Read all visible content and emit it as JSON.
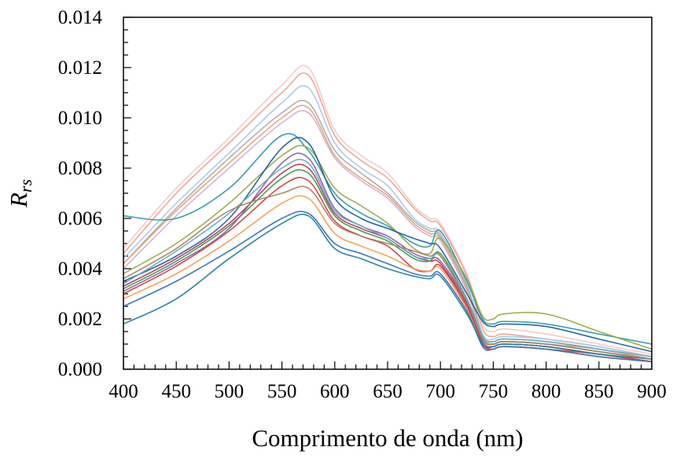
{
  "chart_data": {
    "type": "line",
    "xlabel": "Comprimento de onda (nm)",
    "ylabel": "R",
    "ylabel_subscript": "rs",
    "xlim": [
      400,
      900
    ],
    "ylim": [
      0,
      0.014
    ],
    "x_ticks": [
      "400",
      "450",
      "500",
      "550",
      "600",
      "650",
      "700",
      "750",
      "800",
      "850",
      "900"
    ],
    "y_ticks": [
      "0.000",
      "0.002",
      "0.004",
      "0.006",
      "0.008",
      "0.010",
      "0.012",
      "0.014"
    ],
    "grid": false,
    "legend": "none",
    "x": [
      400,
      450,
      500,
      550,
      575,
      600,
      625,
      650,
      675,
      690,
      700,
      725,
      740,
      750,
      760,
      800,
      850,
      900
    ],
    "series": [
      {
        "color": "#f4c7c3",
        "values": [
          0.0048,
          0.0072,
          0.0092,
          0.0113,
          0.012,
          0.0095,
          0.0085,
          0.0078,
          0.0065,
          0.006,
          0.0058,
          0.0038,
          0.0018,
          0.0015,
          0.0016,
          0.0014,
          0.001,
          0.0006
        ]
      },
      {
        "color": "#f0a090",
        "values": [
          0.0046,
          0.007,
          0.009,
          0.011,
          0.0117,
          0.0093,
          0.0083,
          0.0076,
          0.0064,
          0.0059,
          0.0057,
          0.0037,
          0.0016,
          0.0013,
          0.0014,
          0.0012,
          0.0009,
          0.0005
        ]
      },
      {
        "color": "#a8c8e8",
        "values": [
          0.0044,
          0.0066,
          0.0086,
          0.0106,
          0.0112,
          0.009,
          0.008,
          0.0073,
          0.006,
          0.0056,
          0.0054,
          0.0034,
          0.0014,
          0.0012,
          0.0013,
          0.0012,
          0.0009,
          0.0005
        ]
      },
      {
        "color": "#aaaaaa",
        "values": [
          0.0042,
          0.0064,
          0.0084,
          0.0102,
          0.0106,
          0.0087,
          0.0078,
          0.007,
          0.0059,
          0.0055,
          0.0053,
          0.0033,
          0.0013,
          0.0011,
          0.0012,
          0.0011,
          0.0008,
          0.0004
        ]
      },
      {
        "color": "#e8a070",
        "values": [
          0.0042,
          0.0063,
          0.0082,
          0.01,
          0.0104,
          0.0085,
          0.0076,
          0.0069,
          0.0058,
          0.0054,
          0.0052,
          0.0032,
          0.0012,
          0.001,
          0.0011,
          0.001,
          0.0008,
          0.0004
        ]
      },
      {
        "color": "#d0b0d8",
        "values": [
          0.004,
          0.0061,
          0.008,
          0.0098,
          0.0102,
          0.0084,
          0.0075,
          0.0068,
          0.0057,
          0.0053,
          0.0051,
          0.0031,
          0.0012,
          0.001,
          0.0011,
          0.001,
          0.0007,
          0.0004
        ]
      },
      {
        "color": "#2a9ab0",
        "values": [
          0.0061,
          0.006,
          0.0072,
          0.0093,
          0.0087,
          0.007,
          0.0062,
          0.0057,
          0.005,
          0.0049,
          0.0055,
          0.0035,
          0.002,
          0.0018,
          0.0019,
          0.0018,
          0.0014,
          0.001
        ]
      },
      {
        "color": "#9aaa40",
        "values": [
          0.0038,
          0.005,
          0.0066,
          0.0085,
          0.0088,
          0.0072,
          0.0065,
          0.0058,
          0.0048,
          0.0046,
          0.0052,
          0.0036,
          0.0021,
          0.002,
          0.0022,
          0.0022,
          0.0015,
          0.0008
        ]
      },
      {
        "color": "#1f5f9f",
        "values": [
          0.0035,
          0.0045,
          0.006,
          0.0088,
          0.009,
          0.0068,
          0.006,
          0.0056,
          0.0052,
          0.005,
          0.0048,
          0.003,
          0.0019,
          0.0017,
          0.0018,
          0.0017,
          0.0012,
          0.0007
        ]
      },
      {
        "color": "#c03060",
        "values": [
          0.0033,
          0.0044,
          0.0058,
          0.0078,
          0.008,
          0.0062,
          0.0056,
          0.0052,
          0.0045,
          0.0043,
          0.0042,
          0.0026,
          0.001,
          0.0009,
          0.001,
          0.0009,
          0.0006,
          0.0003
        ]
      },
      {
        "color": "#30a040",
        "values": [
          0.0032,
          0.0043,
          0.0057,
          0.0076,
          0.0078,
          0.0061,
          0.0055,
          0.0051,
          0.0044,
          0.0043,
          0.0046,
          0.0028,
          0.0012,
          0.001,
          0.0011,
          0.001,
          0.0007,
          0.0004
        ]
      },
      {
        "color": "#8a60b0",
        "values": [
          0.0031,
          0.0042,
          0.0056,
          0.0082,
          0.0084,
          0.0064,
          0.0057,
          0.0053,
          0.0046,
          0.0044,
          0.0043,
          0.0027,
          0.0011,
          0.0009,
          0.001,
          0.0009,
          0.0006,
          0.0003
        ]
      },
      {
        "color": "#d04040",
        "values": [
          0.003,
          0.0041,
          0.0055,
          0.0073,
          0.0075,
          0.0059,
          0.0053,
          0.0049,
          0.004,
          0.0039,
          0.0041,
          0.0025,
          0.001,
          0.0008,
          0.0009,
          0.0008,
          0.0006,
          0.0003
        ]
      },
      {
        "color": "#f0a050",
        "values": [
          0.0028,
          0.0038,
          0.0051,
          0.0066,
          0.0068,
          0.0054,
          0.0049,
          0.0045,
          0.004,
          0.0039,
          0.004,
          0.0024,
          0.0009,
          0.0008,
          0.0009,
          0.0008,
          0.0005,
          0.0003
        ]
      },
      {
        "color": "#3070c0",
        "values": [
          0.0025,
          0.0035,
          0.0047,
          0.006,
          0.0062,
          0.005,
          0.0046,
          0.0042,
          0.0038,
          0.0037,
          0.0038,
          0.0023,
          0.0009,
          0.0008,
          0.0009,
          0.0008,
          0.0005,
          0.0003
        ]
      },
      {
        "color": "#1f80a0",
        "values": [
          0.0018,
          0.0028,
          0.0044,
          0.0058,
          0.0061,
          0.0048,
          0.0044,
          0.004,
          0.0037,
          0.0036,
          0.0037,
          0.0022,
          0.001,
          0.0009,
          0.001,
          0.0009,
          0.0006,
          0.0004
        ]
      },
      {
        "color": "#60b0c0",
        "values": [
          0.0034,
          0.0047,
          0.0062,
          0.008,
          0.0082,
          0.0063,
          0.0057,
          0.0052,
          0.0045,
          0.0044,
          0.0045,
          0.0028,
          0.0013,
          0.0011,
          0.0012,
          0.0011,
          0.0008,
          0.0005
        ]
      },
      {
        "color": "#b08060",
        "values": [
          0.0036,
          0.0048,
          0.0063,
          0.007,
          0.0072,
          0.0058,
          0.0053,
          0.005,
          0.0047,
          0.0045,
          0.0045,
          0.0027,
          0.0012,
          0.001,
          0.0011,
          0.001,
          0.0007,
          0.0004
        ]
      }
    ]
  }
}
